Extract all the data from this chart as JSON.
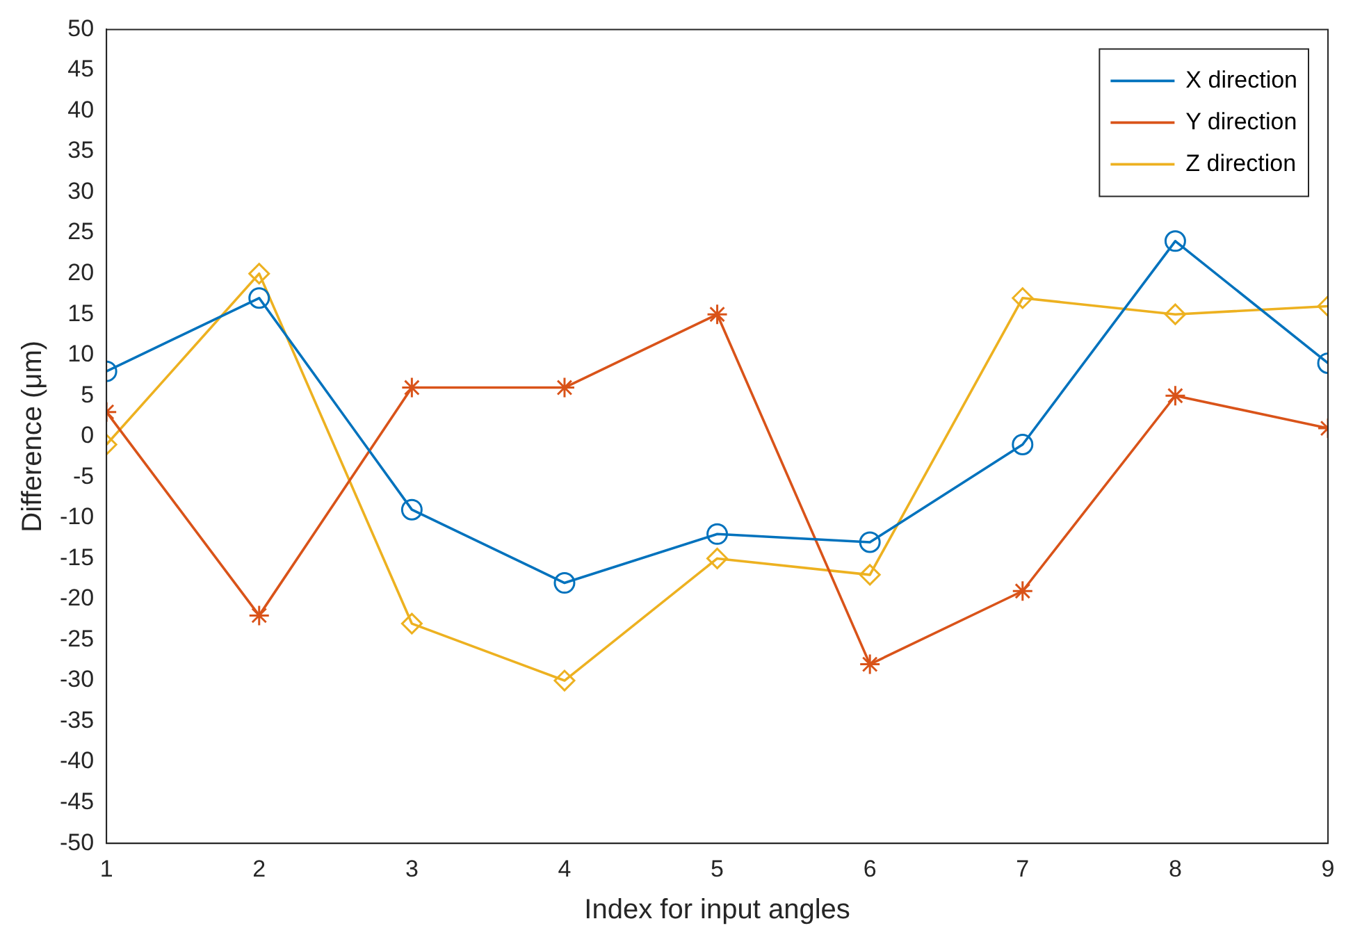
{
  "chart_data": {
    "type": "line",
    "xlabel": "Index for input angles",
    "ylabel": "Difference (μm)",
    "x": [
      1,
      2,
      3,
      4,
      5,
      6,
      7,
      8,
      9
    ],
    "xlim": [
      1,
      9
    ],
    "xticks": [
      1,
      2,
      3,
      4,
      5,
      6,
      7,
      8,
      9
    ],
    "ylim": [
      -50,
      50
    ],
    "yticks": [
      -50,
      -45,
      -40,
      -35,
      -30,
      -25,
      -20,
      -15,
      -10,
      -5,
      0,
      5,
      10,
      15,
      20,
      25,
      30,
      35,
      40,
      45,
      50
    ],
    "grid": false,
    "legend": "top right",
    "line_style": "solid",
    "series": [
      {
        "name": "X direction",
        "color": "#0072bd",
        "marker": "circle",
        "values": [
          8,
          17,
          -9,
          -18,
          -12,
          -13,
          -1,
          24,
          9
        ]
      },
      {
        "name": "Y direction",
        "color": "#d95319",
        "marker": "cross",
        "values": [
          3,
          -22,
          6,
          6,
          15,
          -28,
          -19,
          5,
          1
        ]
      },
      {
        "name": "Z direction",
        "color": "#edb120",
        "marker": "diamond",
        "values": [
          -1,
          20,
          -23,
          -30,
          -15,
          -17,
          17,
          15,
          16
        ]
      }
    ]
  }
}
